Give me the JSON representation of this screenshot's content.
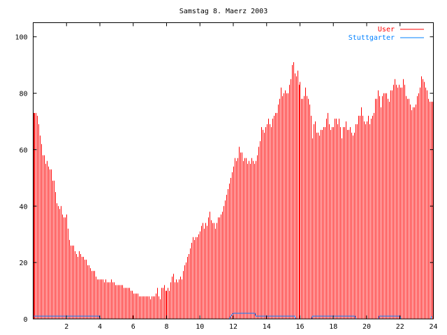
{
  "chart_data": {
    "type": "bar",
    "title": "Samstag 8. Maerz 2003",
    "xlabel": "",
    "ylabel": "",
    "xlim": [
      0,
      24
    ],
    "ylim": [
      0,
      105
    ],
    "x_step_hours": 0.0833333,
    "xticks": [
      "2",
      "4",
      "6",
      "8",
      "10",
      "12",
      "14",
      "16",
      "18",
      "20",
      "22",
      "24"
    ],
    "xtick_values": [
      2,
      4,
      6,
      8,
      10,
      12,
      14,
      16,
      18,
      20,
      22,
      24
    ],
    "yticks": [
      "0",
      "20",
      "40",
      "60",
      "80",
      "100"
    ],
    "ytick_values": [
      0,
      20,
      40,
      60,
      80,
      100
    ],
    "legend_position": "top-right",
    "series": [
      {
        "name": "User",
        "style": "impulses",
        "color": "#ff0000",
        "values": [
          73,
          73,
          73,
          72,
          69,
          65,
          62,
          58,
          58,
          55,
          56,
          54,
          53,
          53,
          49,
          49,
          45,
          41,
          40,
          39,
          40,
          37,
          36,
          36,
          37,
          32,
          28,
          26,
          26,
          26,
          24,
          23,
          22,
          24,
          23,
          22,
          22,
          21,
          21,
          19,
          19,
          18,
          17,
          17,
          17,
          15,
          14,
          14,
          14,
          14,
          14,
          13,
          14,
          13,
          13,
          13,
          14,
          13,
          13,
          12,
          12,
          12,
          12,
          12,
          12,
          11,
          11,
          11,
          11,
          11,
          10,
          10,
          9,
          9,
          9,
          9,
          8,
          8,
          8,
          8,
          8,
          8,
          8,
          8,
          7,
          8,
          8,
          8,
          9,
          11,
          8,
          7,
          11,
          11,
          12,
          10,
          10,
          11,
          10,
          13,
          15,
          16,
          13,
          14,
          13,
          14,
          15,
          14,
          17,
          19,
          20,
          22,
          23,
          25,
          27,
          29,
          28,
          29,
          29,
          30,
          31,
          33,
          34,
          32,
          34,
          33,
          36,
          38,
          35,
          34,
          34,
          32,
          34,
          36,
          36,
          37,
          38,
          40,
          42,
          44,
          46,
          48,
          50,
          52,
          54,
          57,
          56,
          57,
          61,
          59,
          59,
          56,
          57,
          57,
          55,
          56,
          55,
          57,
          56,
          55,
          56,
          58,
          61,
          63,
          68,
          67,
          66,
          68,
          69,
          71,
          69,
          68,
          71,
          72,
          73,
          73,
          76,
          78,
          82,
          79,
          80,
          81,
          80,
          80,
          83,
          85,
          90,
          91,
          87,
          86,
          88,
          83,
          84,
          78,
          78,
          79,
          82,
          79,
          78,
          76,
          72,
          64,
          69,
          70,
          66,
          66,
          65,
          67,
          67,
          68,
          68,
          71,
          73,
          69,
          67,
          68,
          68,
          71,
          71,
          69,
          71,
          68,
          64,
          68,
          68,
          70,
          67,
          67,
          68,
          66,
          65,
          66,
          69,
          69,
          72,
          72,
          75,
          72,
          70,
          69,
          70,
          72,
          69,
          71,
          72,
          73,
          78,
          78,
          81,
          79,
          75,
          79,
          80,
          80,
          80,
          78,
          77,
          81,
          81,
          83,
          85,
          83,
          82,
          83,
          82,
          82,
          85,
          83,
          79,
          78,
          78,
          76,
          74,
          75,
          75,
          76,
          79,
          80,
          82,
          86,
          85,
          84,
          82,
          81,
          78,
          77,
          77,
          77
        ]
      },
      {
        "name": "Stuttgarter",
        "style": "lines",
        "color": "#0080ff",
        "points": [
          [
            0,
            1
          ],
          [
            3.95,
            1
          ],
          [
            4.05,
            0
          ],
          [
            11.75,
            0
          ],
          [
            11.85,
            1
          ],
          [
            12.0,
            2
          ],
          [
            13.3,
            2
          ],
          [
            13.35,
            1
          ],
          [
            15.7,
            1
          ],
          [
            15.75,
            0
          ],
          [
            16.7,
            0
          ],
          [
            16.75,
            1
          ],
          [
            19.3,
            1
          ],
          [
            19.35,
            0
          ],
          [
            20.7,
            0
          ],
          [
            20.75,
            1
          ],
          [
            22.0,
            1
          ],
          [
            22.05,
            0
          ],
          [
            23.85,
            0
          ],
          [
            23.9,
            1
          ]
        ]
      }
    ]
  }
}
